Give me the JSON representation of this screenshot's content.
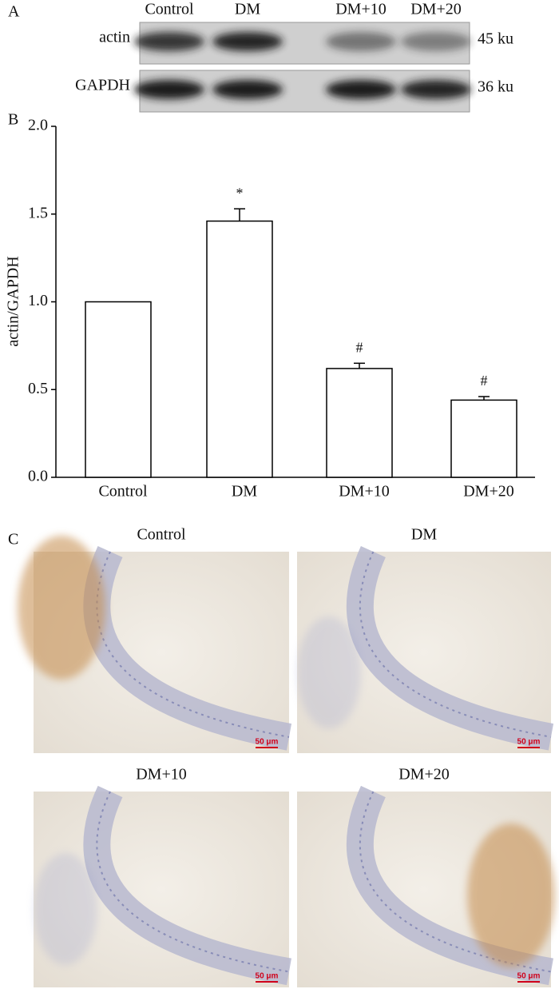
{
  "panel_labels": [
    "A",
    "B",
    "C"
  ],
  "blot": {
    "lanes": [
      "Control",
      "DM",
      "DM+10",
      "DM+20"
    ],
    "rows": [
      {
        "name": "actin",
        "size": "45 ku"
      },
      {
        "name": "GAPDH",
        "size": "36 ku"
      }
    ]
  },
  "chart_data": {
    "type": "bar",
    "y_label": "actin/GAPDH",
    "categories": [
      "Control",
      "DM",
      "DM+10",
      "DM+20"
    ],
    "values": [
      1.0,
      1.46,
      0.62,
      0.44
    ],
    "errors": [
      null,
      0.07,
      0.03,
      0.02
    ],
    "annotations": [
      null,
      "*",
      "#",
      "#"
    ],
    "color": "#ffffff",
    "ylim": [
      0,
      2
    ],
    "yticks": [
      {
        "value": 0,
        "label": "0.0"
      },
      {
        "value": 0.5,
        "label": "0.5"
      },
      {
        "value": 1,
        "label": "1.0"
      },
      {
        "value": 1.5,
        "label": "1.5"
      },
      {
        "value": 2,
        "label": "2.0"
      }
    ],
    "grid": false
  },
  "micrographs": [
    {
      "title": "Control",
      "scale_bar": "50 μm"
    },
    {
      "title": "DM",
      "scale_bar": "50 μm"
    },
    {
      "title": "DM+10",
      "scale_bar": "50 μm"
    },
    {
      "title": "DM+20",
      "scale_bar": "50 μm"
    }
  ]
}
